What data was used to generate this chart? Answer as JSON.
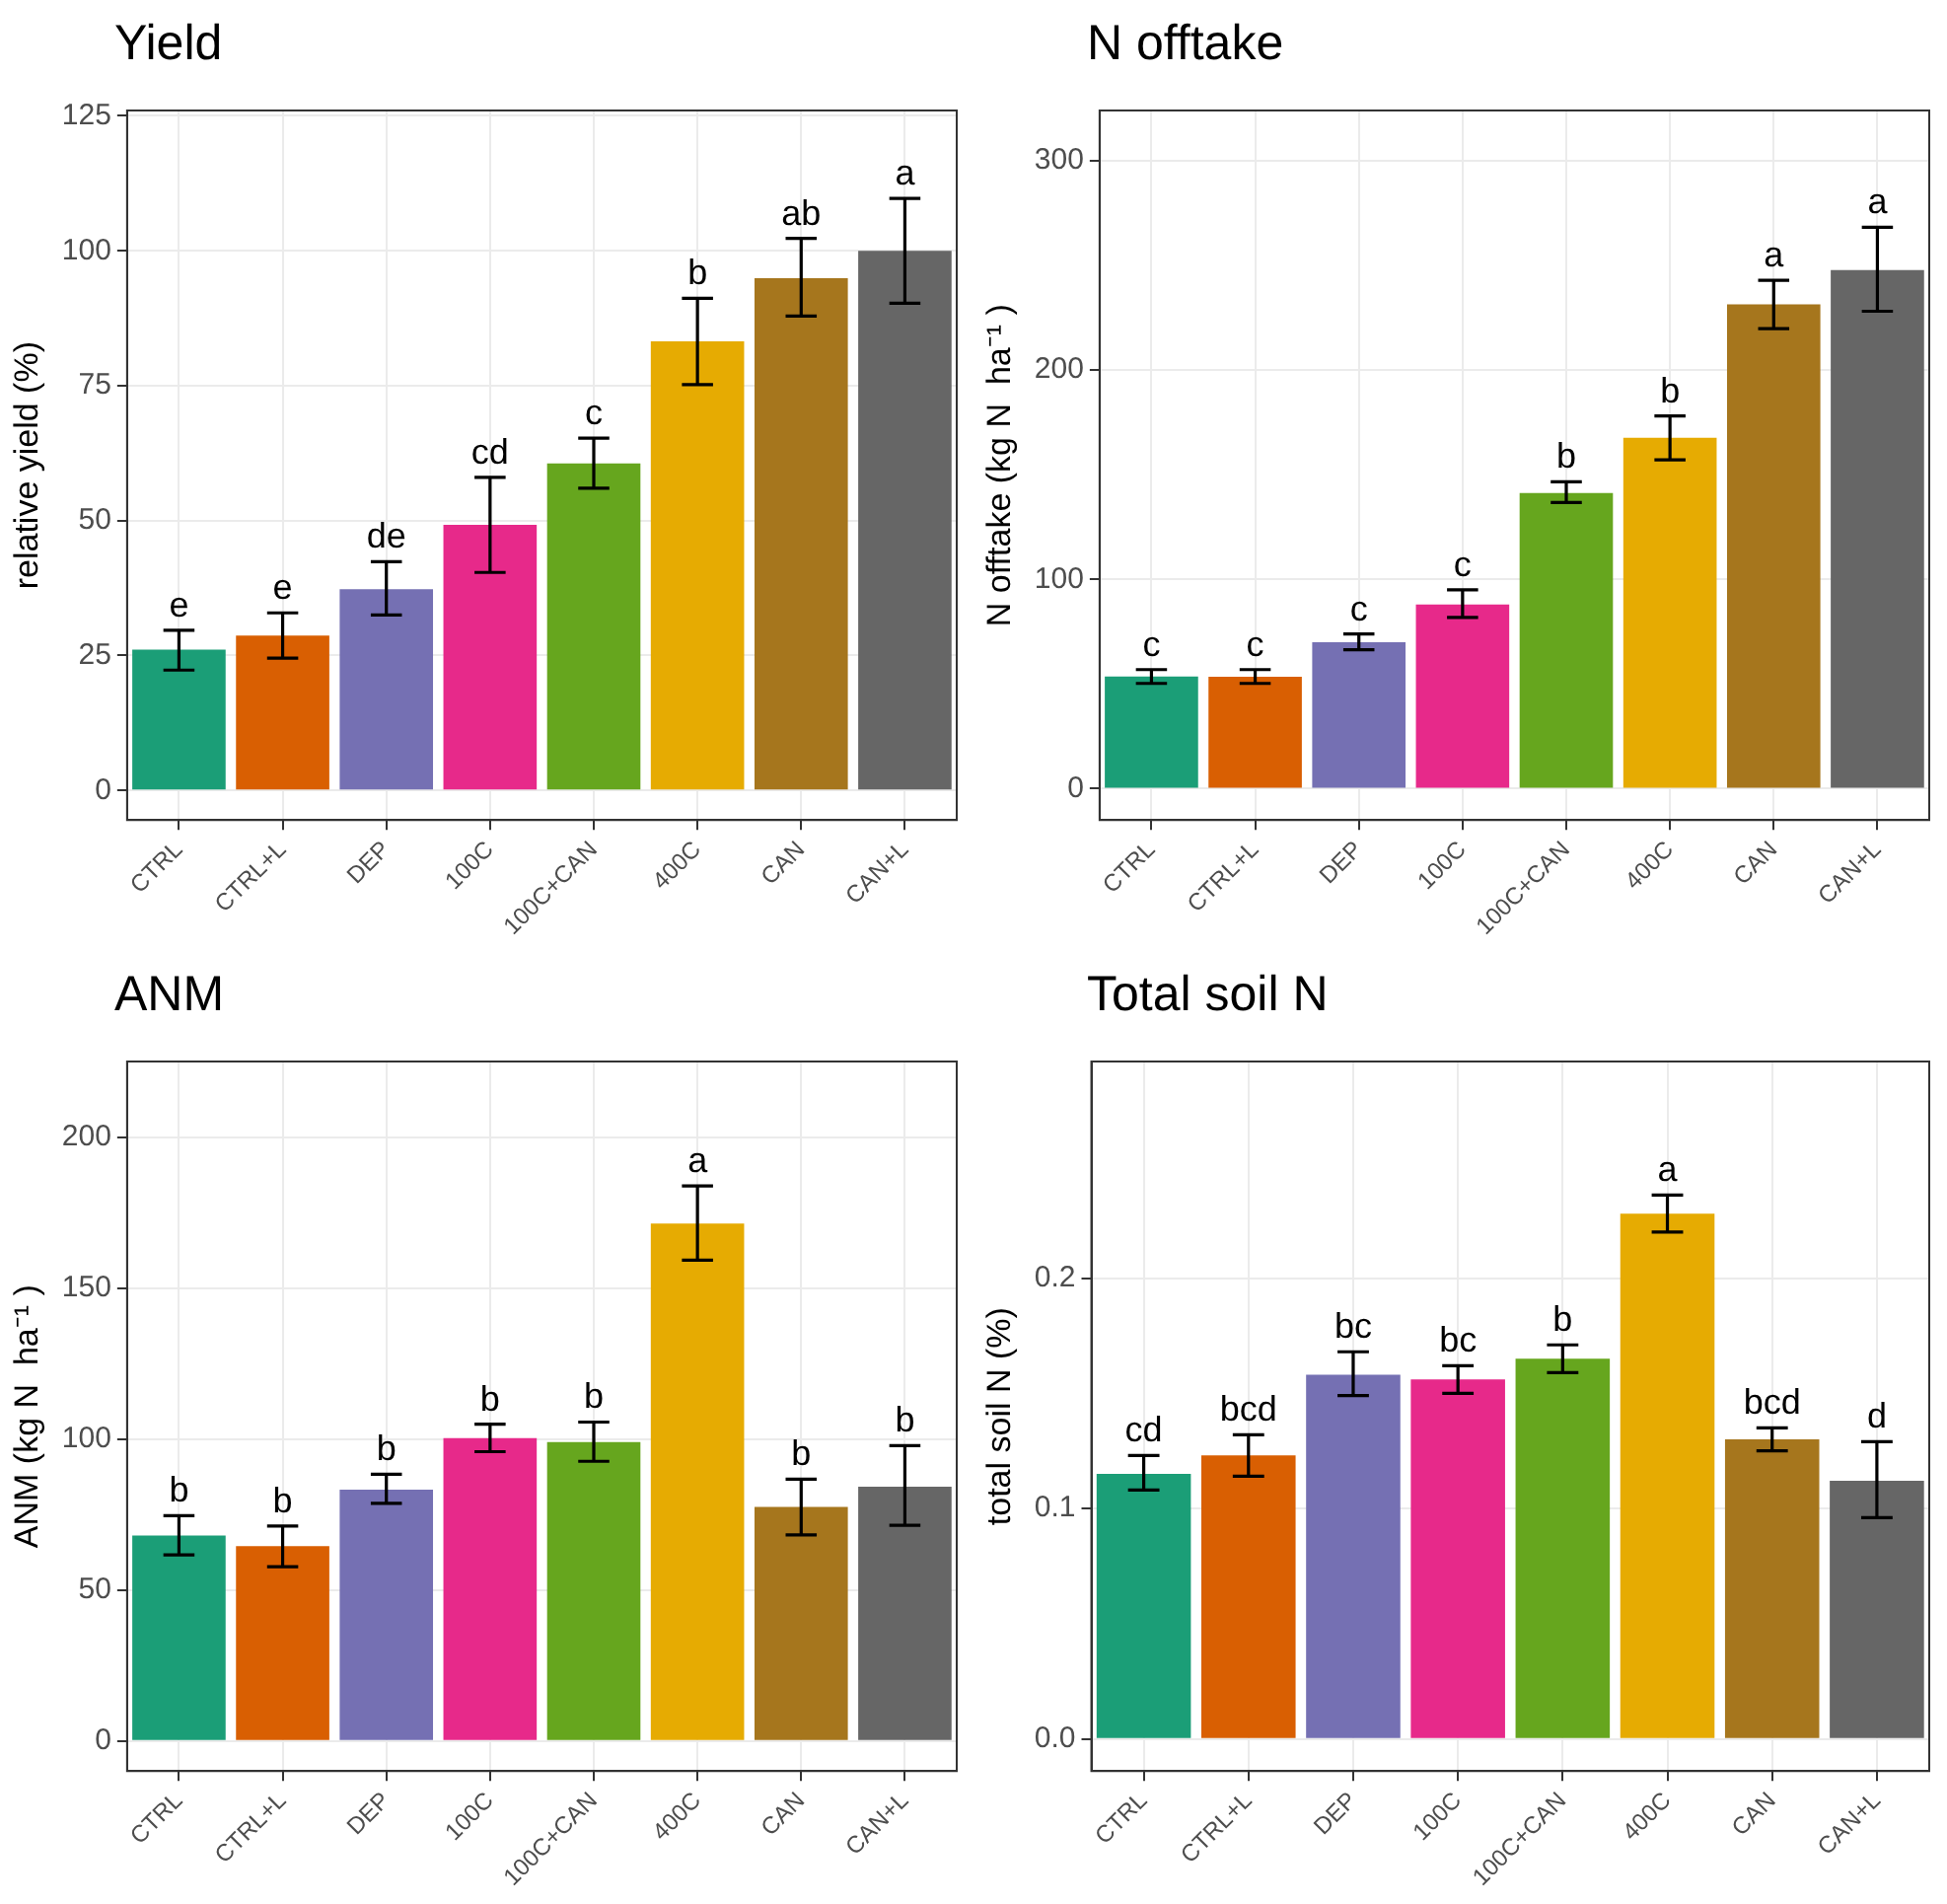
{
  "chart_data": [
    {
      "type": "bar",
      "title": "Yield",
      "ylabel": "relative yield (%)",
      "categories": [
        "CTRL",
        "CTRL+L",
        "DEP",
        "100C",
        "100C+CAN",
        "400C",
        "CAN",
        "CAN+L"
      ],
      "colors": [
        "#1b9e77",
        "#d95f02",
        "#7570b3",
        "#e7298a",
        "#66a61e",
        "#e6ab02",
        "#a6761d",
        "#666666"
      ],
      "values": [
        26.1,
        28.7,
        37.3,
        49.2,
        60.6,
        83.2,
        94.9,
        100
      ],
      "errors": [
        [
          22.3,
          29.7
        ],
        [
          24.5,
          32.9
        ],
        [
          32.5,
          42.4
        ],
        [
          40.4,
          58.0
        ],
        [
          56.0,
          65.3
        ],
        [
          75.2,
          91.2
        ],
        [
          87.9,
          102.3
        ],
        [
          90.3,
          109.7
        ]
      ],
      "ylim": [
        -5.5,
        126
      ],
      "yticks": [
        0,
        25,
        50,
        75,
        100,
        125
      ],
      "grid": true,
      "legend": false,
      "annotations": [
        {
          "text": "e",
          "x": "CTRL",
          "y": 29.7
        },
        {
          "text": "e",
          "x": "CTRL+L",
          "y": 32.9
        },
        {
          "text": "de",
          "x": "DEP",
          "y": 42.4
        },
        {
          "text": "cd",
          "x": "100C",
          "y": 58.0
        },
        {
          "text": "c",
          "x": "100C+CAN",
          "y": 65.3
        },
        {
          "text": "b",
          "x": "400C",
          "y": 91.2
        },
        {
          "text": "ab",
          "x": "CAN",
          "y": 102.3
        },
        {
          "text": "a",
          "x": "CAN+L",
          "y": 109.7
        }
      ]
    },
    {
      "type": "bar",
      "title": "N offtake",
      "ylabel": "N offtake (kg N  ha⁻¹ )",
      "categories": [
        "CTRL",
        "CTRL+L",
        "DEP",
        "100C",
        "100C+CAN",
        "400C",
        "CAN",
        "CAN+L"
      ],
      "colors": [
        "#1b9e77",
        "#d95f02",
        "#7570b3",
        "#e7298a",
        "#66a61e",
        "#e6ab02",
        "#a6761d",
        "#666666"
      ],
      "values": [
        53.6,
        53.5,
        70,
        88,
        141.3,
        167.6,
        231.4,
        247.8
      ],
      "errors": [
        [
          50.3,
          56.9
        ],
        [
          50.3,
          56.9
        ],
        [
          66.4,
          73.9
        ],
        [
          81.8,
          95
        ],
        [
          136.7,
          146.6
        ],
        [
          157.1,
          178.1
        ],
        [
          219.8,
          242.9
        ],
        [
          228.1,
          268.2
        ]
      ],
      "ylim": [
        -15,
        324
      ],
      "yticks": [
        0,
        100,
        200,
        300
      ],
      "grid": true,
      "legend": false,
      "annotations": [
        {
          "text": "c",
          "x": "CTRL",
          "y": 56.9
        },
        {
          "text": "c",
          "x": "CTRL+L",
          "y": 56.9
        },
        {
          "text": "c",
          "x": "DEP",
          "y": 73.9
        },
        {
          "text": "c",
          "x": "100C",
          "y": 95
        },
        {
          "text": "b",
          "x": "100C+CAN",
          "y": 146.6
        },
        {
          "text": "b",
          "x": "400C",
          "y": 178.1
        },
        {
          "text": "a",
          "x": "CAN",
          "y": 242.9
        },
        {
          "text": "a",
          "x": "CAN+L",
          "y": 268.2
        }
      ]
    },
    {
      "type": "bar",
      "title": "ANM",
      "ylabel": "ANM (kg N  ha⁻¹ )",
      "categories": [
        "CTRL",
        "CTRL+L",
        "DEP",
        "100C",
        "100C+CAN",
        "400C",
        "CAN",
        "CAN+L"
      ],
      "colors": [
        "#1b9e77",
        "#d95f02",
        "#7570b3",
        "#e7298a",
        "#66a61e",
        "#e6ab02",
        "#a6761d",
        "#666666"
      ],
      "values": [
        68,
        64.5,
        83.2,
        100.3,
        99,
        171.3,
        77.5,
        84.2
      ],
      "errors": [
        [
          61.6,
          74.6
        ],
        [
          57.7,
          71.2
        ],
        [
          78.7,
          88.3
        ],
        [
          95.8,
          104.9
        ],
        [
          92.6,
          105.6
        ],
        [
          159.2,
          183.8
        ],
        [
          68.2,
          86.7
        ],
        [
          71.4,
          97.8
        ]
      ],
      "ylim": [
        -10,
        225
      ],
      "yticks": [
        0,
        50,
        100,
        150,
        200
      ],
      "grid": true,
      "legend": false,
      "annotations": [
        {
          "text": "b",
          "x": "CTRL",
          "y": 74.6
        },
        {
          "text": "b",
          "x": "CTRL+L",
          "y": 71.2
        },
        {
          "text": "b",
          "x": "DEP",
          "y": 88.3
        },
        {
          "text": "b",
          "x": "100C",
          "y": 104.9
        },
        {
          "text": "b",
          "x": "100C+CAN",
          "y": 105.6
        },
        {
          "text": "a",
          "x": "400C",
          "y": 183.8
        },
        {
          "text": "b",
          "x": "CAN",
          "y": 86.7
        },
        {
          "text": "b",
          "x": "CAN+L",
          "y": 97.8
        }
      ]
    },
    {
      "type": "bar",
      "title": "Total soil N",
      "ylabel": "total soil N (%)",
      "categories": [
        "CTRL",
        "CTRL+L",
        "DEP",
        "100C",
        "100C+CAN",
        "400C",
        "CAN",
        "CAN+L"
      ],
      "colors": [
        "#1b9e77",
        "#d95f02",
        "#7570b3",
        "#e7298a",
        "#66a61e",
        "#e6ab02",
        "#a6761d",
        "#666666"
      ],
      "values": [
        0.115,
        0.123,
        0.158,
        0.156,
        0.165,
        0.228,
        0.13,
        0.112
      ],
      "errors": [
        [
          0.108,
          0.123
        ],
        [
          0.114,
          0.132
        ],
        [
          0.149,
          0.168
        ],
        [
          0.15,
          0.162
        ],
        [
          0.159,
          0.171
        ],
        [
          0.22,
          0.236
        ],
        [
          0.125,
          0.135
        ],
        [
          0.096,
          0.129
        ]
      ],
      "ylim": [
        -0.014,
        0.294
      ],
      "yticks": [
        {
          "value": 0,
          "label": "0.0"
        },
        0.1,
        0.2
      ],
      "grid": true,
      "legend": false,
      "annotations": [
        {
          "text": "cd",
          "x": "CTRL",
          "y": 0.123
        },
        {
          "text": "bcd",
          "x": "CTRL+L",
          "y": 0.132
        },
        {
          "text": "bc",
          "x": "DEP",
          "y": 0.168
        },
        {
          "text": "bc",
          "x": "100C",
          "y": 0.162
        },
        {
          "text": "b",
          "x": "100C+CAN",
          "y": 0.171
        },
        {
          "text": "a",
          "x": "400C",
          "y": 0.236
        },
        {
          "text": "bcd",
          "x": "CAN",
          "y": 0.135
        },
        {
          "text": "d",
          "x": "CAN+L",
          "y": 0.129
        }
      ]
    }
  ]
}
